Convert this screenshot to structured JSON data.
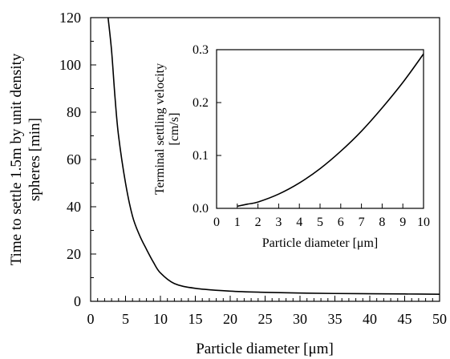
{
  "chart_data": [
    {
      "type": "line",
      "title": "",
      "xlabel": "Particle diameter [μm]",
      "ylabel_line1": "Time to settle 1.5m by unit density",
      "ylabel_line2": "spheres  [min]",
      "xlim": [
        0,
        50
      ],
      "ylim": [
        0,
        120
      ],
      "xticks": [
        0,
        5,
        10,
        15,
        20,
        25,
        30,
        35,
        40,
        45,
        50
      ],
      "yticks": [
        0,
        20,
        40,
        60,
        80,
        100,
        120
      ],
      "grid": false,
      "legend": "none",
      "series": [
        {
          "x": [
            2.5,
            3,
            3.5,
            4,
            5,
            6,
            7,
            8,
            9,
            10,
            12,
            15,
            20,
            25,
            30,
            35,
            40,
            45,
            50
          ],
          "y": [
            120,
            106,
            86,
            70,
            50,
            36,
            28,
            22,
            16.5,
            12,
            7.5,
            5.5,
            4.3,
            3.8,
            3.5,
            3.3,
            3.2,
            3.1,
            3.0
          ]
        }
      ]
    },
    {
      "type": "line",
      "title": "",
      "xlabel": "Particle diameter [μm]",
      "ylabel_line1": "Terminal settling velocity",
      "ylabel_line2": "[cm/s]",
      "xlim": [
        0,
        10
      ],
      "ylim": [
        0,
        0.3
      ],
      "xticks": [
        0,
        1,
        2,
        3,
        4,
        5,
        6,
        7,
        8,
        9,
        10
      ],
      "yticks": [
        "0.0",
        "0.1",
        "0.2",
        "0.3"
      ],
      "grid": false,
      "legend": "none",
      "series": [
        {
          "x": [
            1,
            1.5,
            2,
            3,
            4,
            5,
            6,
            7,
            8,
            9,
            10
          ],
          "y": [
            0.004,
            0.008,
            0.012,
            0.027,
            0.048,
            0.075,
            0.108,
            0.146,
            0.19,
            0.238,
            0.292
          ]
        }
      ]
    }
  ]
}
